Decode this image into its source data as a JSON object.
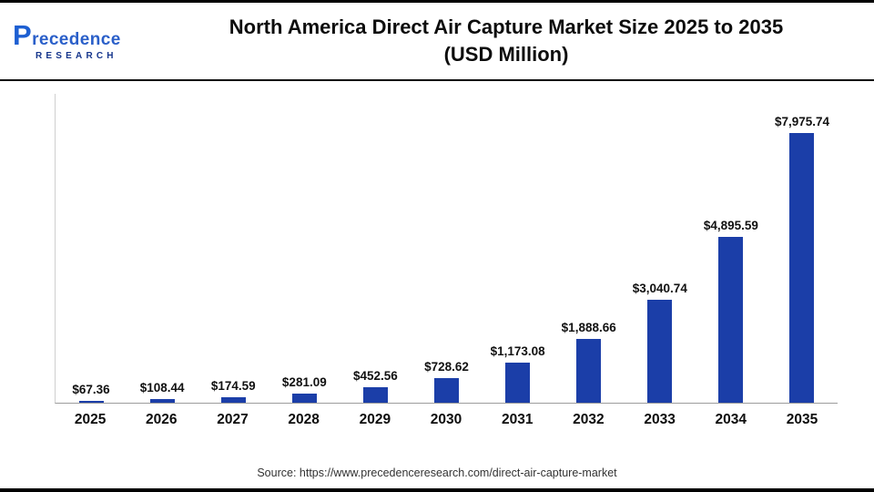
{
  "logo": {
    "name": "Precedence",
    "sub": "RESEARCH"
  },
  "header": {
    "title_line1": "North America Direct Air Capture Market Size 2025 to 2035",
    "title_line2": "(USD Million)"
  },
  "footer": {
    "source": "Source: https://www.precedenceresearch.com/direct-air-capture-market"
  },
  "chart_data": {
    "type": "bar",
    "title": "North America Direct Air Capture Market Size 2025 to 2035 (USD Million)",
    "xlabel": "",
    "ylabel": "",
    "ylim": [
      0,
      8000
    ],
    "grid": "off",
    "legend": "none",
    "bar_color": "#1b3ea8",
    "categories": [
      "2025",
      "2026",
      "2027",
      "2028",
      "2029",
      "2030",
      "2031",
      "2032",
      "2033",
      "2034",
      "2035"
    ],
    "values": [
      67.36,
      108.44,
      174.59,
      281.09,
      452.56,
      728.62,
      1173.08,
      1888.66,
      3040.74,
      4895.59,
      7975.74
    ],
    "value_labels": [
      "$67.36",
      "$108.44",
      "$174.59",
      "$281.09",
      "$452.56",
      "$728.62",
      "$1,173.08",
      "$1,888.66",
      "$3,040.74",
      "$4,895.59",
      "$7,975.74"
    ]
  }
}
